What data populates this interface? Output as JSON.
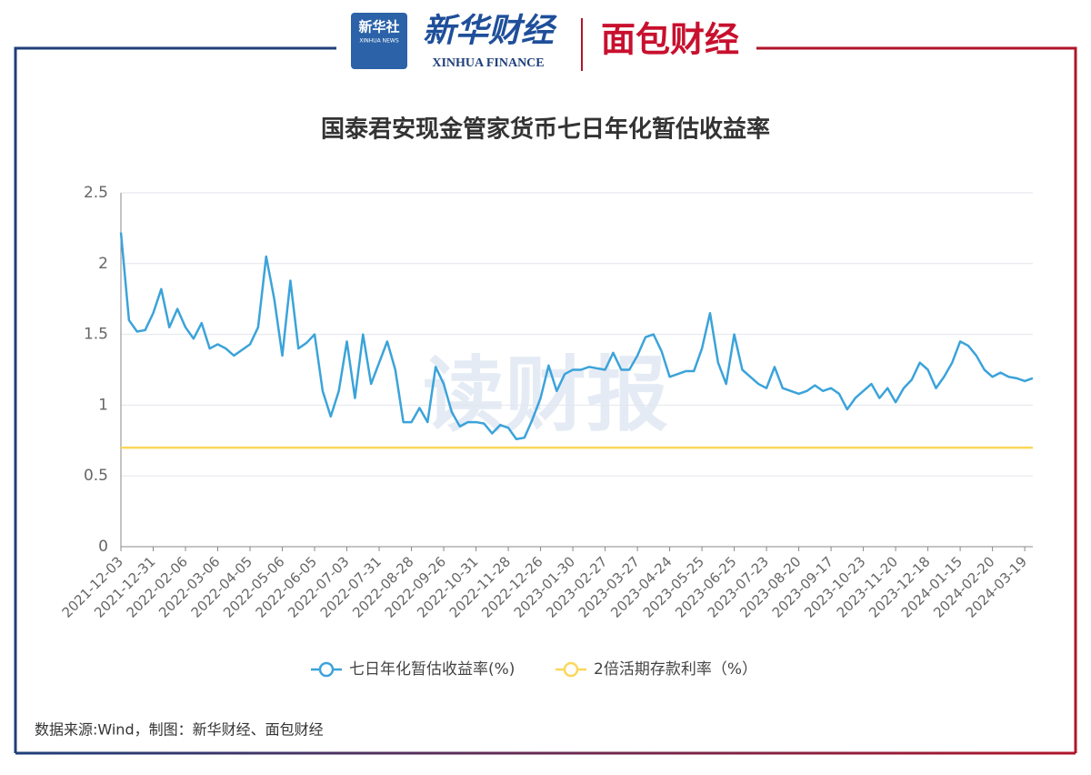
{
  "header": {
    "logo_main": "新华社",
    "logo_sub": "XINHUA NEWS",
    "brand": "新华财经",
    "brand_sub": "XINHUA FINANCE",
    "partner": "面包财经"
  },
  "watermark": "读财报",
  "chart_data": {
    "type": "line",
    "title": "国泰君安现金管家货币七日年化暂估收益率",
    "source": "数据来源:Wind，制图：新华财经、面包财经",
    "categories": [
      "2021-12-03",
      null,
      null,
      null,
      "2021-12-31",
      null,
      null,
      null,
      "2022-02-06",
      null,
      null,
      null,
      "2022-03-06",
      null,
      null,
      null,
      "2022-04-05",
      null,
      null,
      null,
      "2022-05-06",
      null,
      null,
      null,
      "2022-06-05",
      null,
      null,
      null,
      "2022-07-03",
      null,
      null,
      null,
      "2022-07-31",
      null,
      null,
      null,
      "2022-08-28",
      null,
      null,
      null,
      "2022-09-26",
      null,
      null,
      null,
      "2022-10-31",
      null,
      null,
      null,
      "2022-11-28",
      null,
      null,
      null,
      "2022-12-26",
      null,
      null,
      null,
      "2023-01-30",
      null,
      null,
      null,
      "2023-02-27",
      null,
      null,
      null,
      "2023-03-27",
      null,
      null,
      null,
      "2023-04-24",
      null,
      null,
      null,
      "2023-05-25",
      null,
      null,
      null,
      "2023-06-25",
      null,
      null,
      null,
      "2023-07-23",
      null,
      null,
      null,
      "2023-08-20",
      null,
      null,
      null,
      "2023-09-17",
      null,
      null,
      null,
      "2023-10-23",
      null,
      null,
      null,
      "2023-11-20",
      null,
      null,
      null,
      "2023-12-18",
      null,
      null,
      null,
      "2024-01-15",
      null,
      null,
      null,
      "2024-02-20",
      null,
      null,
      null,
      "2024-03-19",
      null
    ],
    "series": [
      {
        "name": "七日年化暂估收益率(%)",
        "color": "#3ba3da",
        "values": [
          2.22,
          1.6,
          1.52,
          1.53,
          1.65,
          1.82,
          1.55,
          1.68,
          1.55,
          1.47,
          1.58,
          1.4,
          1.43,
          1.4,
          1.35,
          1.39,
          1.43,
          1.55,
          2.05,
          1.75,
          1.35,
          1.88,
          1.4,
          1.44,
          1.5,
          1.1,
          0.92,
          1.1,
          1.45,
          1.05,
          1.5,
          1.15,
          1.3,
          1.45,
          1.25,
          0.88,
          0.88,
          0.98,
          0.88,
          1.27,
          1.15,
          0.95,
          0.85,
          0.88,
          0.88,
          0.87,
          0.8,
          0.86,
          0.84,
          0.76,
          0.77,
          0.9,
          1.05,
          1.28,
          1.1,
          1.22,
          1.25,
          1.25,
          1.27,
          1.26,
          1.25,
          1.37,
          1.25,
          1.25,
          1.35,
          1.48,
          1.5,
          1.38,
          1.2,
          1.22,
          1.24,
          1.24,
          1.4,
          1.65,
          1.3,
          1.15,
          1.5,
          1.25,
          1.2,
          1.15,
          1.12,
          1.27,
          1.12,
          1.1,
          1.08,
          1.1,
          1.14,
          1.1,
          1.12,
          1.08,
          0.97,
          1.05,
          1.1,
          1.15,
          1.05,
          1.12,
          1.02,
          1.12,
          1.18,
          1.3,
          1.25,
          1.12,
          1.2,
          1.3,
          1.45,
          1.42,
          1.35,
          1.25,
          1.2,
          1.23,
          1.2,
          1.19,
          1.17,
          1.19
        ]
      },
      {
        "name": "2倍活期存款利率（%）",
        "color": "#fbd75b",
        "values": [
          0.7,
          0.7,
          0.7,
          0.7,
          0.7,
          0.7,
          0.7,
          0.7,
          0.7,
          0.7,
          0.7,
          0.7,
          0.7,
          0.7,
          0.7,
          0.7,
          0.7,
          0.7,
          0.7,
          0.7,
          0.7,
          0.7,
          0.7,
          0.7,
          0.7,
          0.7,
          0.7,
          0.7,
          0.7,
          0.7,
          0.7,
          0.7,
          0.7,
          0.7,
          0.7,
          0.7,
          0.7,
          0.7,
          0.7,
          0.7,
          0.7,
          0.7,
          0.7,
          0.7,
          0.7,
          0.7,
          0.7,
          0.7,
          0.7,
          0.7,
          0.7,
          0.7,
          0.7,
          0.7,
          0.7,
          0.7,
          0.7,
          0.7,
          0.7,
          0.7,
          0.7,
          0.7,
          0.7,
          0.7,
          0.7,
          0.7,
          0.7,
          0.7,
          0.7,
          0.7,
          0.7,
          0.7,
          0.7,
          0.7,
          0.7,
          0.7,
          0.7,
          0.7,
          0.7,
          0.7,
          0.7,
          0.7,
          0.7,
          0.7,
          0.7,
          0.7,
          0.7,
          0.7,
          0.7,
          0.7,
          0.7,
          0.7,
          0.7,
          0.7,
          0.7,
          0.7,
          0.7,
          0.7,
          0.7,
          0.7,
          0.7,
          0.7,
          0.7,
          0.7,
          0.7,
          0.7,
          0.7,
          0.7,
          0.7,
          0.7,
          0.7,
          0.7,
          0.7,
          0.7
        ]
      }
    ],
    "ylim": [
      0,
      2.5
    ],
    "yticks": [
      0,
      0.5,
      1,
      1.5,
      2,
      2.5
    ],
    "grid": true
  }
}
